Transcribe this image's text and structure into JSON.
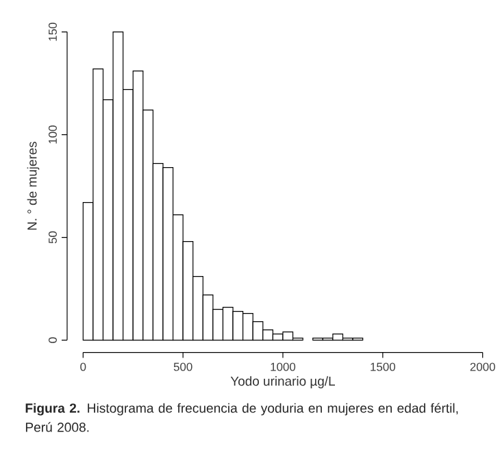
{
  "chart_data": {
    "type": "histogram",
    "xlabel": "Yodo urinario µg/L",
    "ylabel": "N. ° de mujeres",
    "bins": [
      0,
      50,
      100,
      150,
      200,
      250,
      300,
      350,
      400,
      450,
      500,
      550,
      600,
      650,
      700,
      750,
      800,
      850,
      900,
      950,
      1000,
      1050,
      1100,
      1150,
      1200,
      1250,
      1300,
      1350,
      1400
    ],
    "values": [
      67,
      132,
      117,
      150,
      122,
      131,
      112,
      86,
      84,
      61,
      48,
      31,
      22,
      15,
      16,
      14,
      13,
      9,
      5,
      3,
      4,
      1,
      0,
      1,
      1,
      3,
      1,
      1
    ],
    "xlim": [
      0,
      2000
    ],
    "ylim": [
      0,
      150
    ],
    "xticks": [
      0,
      500,
      1000,
      1500,
      2000
    ],
    "yticks": [
      0,
      50,
      100,
      150
    ],
    "annotations": [
      "**Figura 2.** Histograma de frecuencia de yoduria en mujeres en edad fértil, Perú 2008."
    ]
  }
}
